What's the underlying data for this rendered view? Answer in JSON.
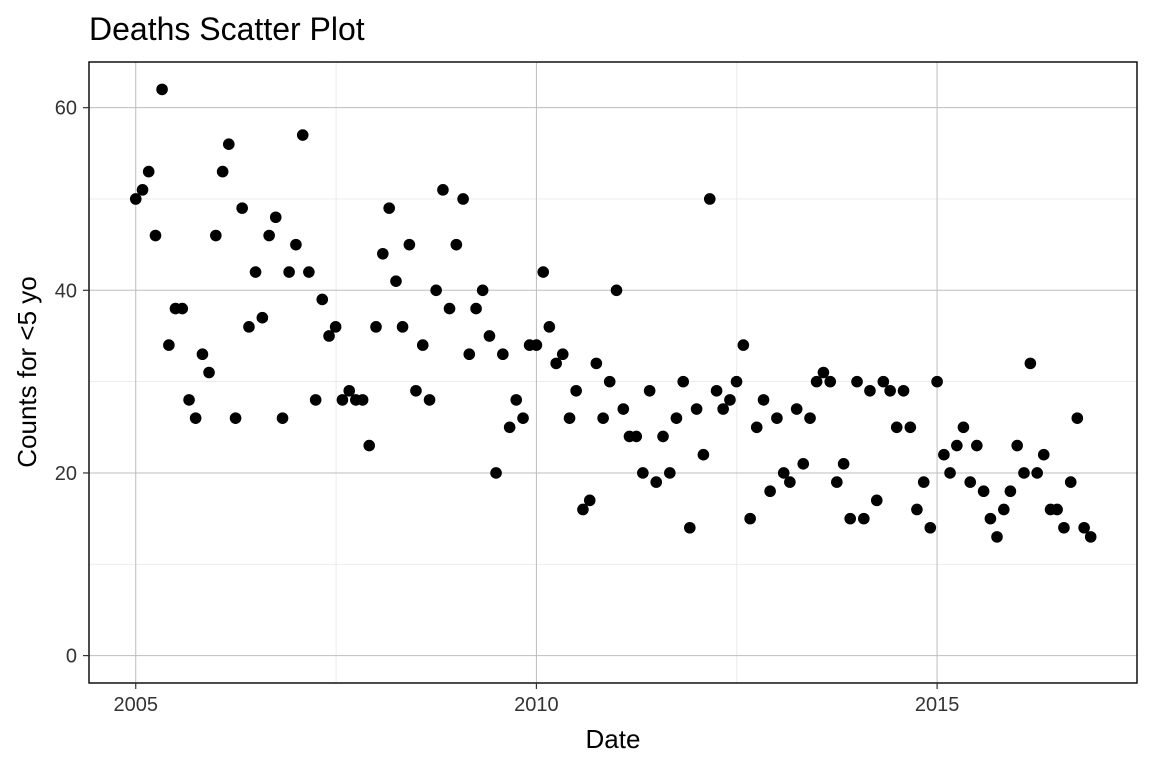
{
  "chart_data": {
    "type": "scatter",
    "title": "Deaths Scatter Plot",
    "xlabel": "Date",
    "ylabel": "Counts for <5 yo",
    "xlim": [
      "2004-06-02",
      "2017-06-30"
    ],
    "ylim": [
      -3,
      65
    ],
    "x_ticks": [
      {
        "date": "2005-01-01",
        "label": "2005"
      },
      {
        "date": "2010-01-01",
        "label": "2010"
      },
      {
        "date": "2015-01-01",
        "label": "2015"
      }
    ],
    "y_ticks": [
      0,
      20,
      40,
      60
    ],
    "grid": true,
    "legend": "none",
    "point_color": "#000000",
    "series": [
      {
        "x": [
          "2005-01-01",
          "2005-02-01",
          "2005-03-01",
          "2005-04-01",
          "2005-05-01",
          "2005-06-01",
          "2005-07-01",
          "2005-08-01",
          "2005-09-01",
          "2005-10-01",
          "2005-11-01",
          "2005-12-01",
          "2006-01-01",
          "2006-02-01",
          "2006-03-01",
          "2006-04-01",
          "2006-05-01",
          "2006-06-01",
          "2006-07-01",
          "2006-08-01",
          "2006-09-01",
          "2006-10-01",
          "2006-11-01",
          "2006-12-01",
          "2007-01-01",
          "2007-02-01",
          "2007-03-01",
          "2007-04-01",
          "2007-05-01",
          "2007-06-01",
          "2007-07-01",
          "2007-08-01",
          "2007-09-01",
          "2007-10-01",
          "2007-11-01",
          "2007-12-01",
          "2008-01-01",
          "2008-02-01",
          "2008-03-01",
          "2008-04-01",
          "2008-05-01",
          "2008-06-01",
          "2008-07-01",
          "2008-08-01",
          "2008-09-01",
          "2008-10-01",
          "2008-11-01",
          "2008-12-01",
          "2009-01-01",
          "2009-02-01",
          "2009-03-01",
          "2009-04-01",
          "2009-05-01",
          "2009-06-01",
          "2009-07-01",
          "2009-08-01",
          "2009-09-01",
          "2009-10-01",
          "2009-11-01",
          "2009-12-01",
          "2010-01-01",
          "2010-02-01",
          "2010-03-01",
          "2010-04-01",
          "2010-05-01",
          "2010-06-01",
          "2010-07-01",
          "2010-08-01",
          "2010-09-01",
          "2010-10-01",
          "2010-11-01",
          "2010-12-01",
          "2011-01-01",
          "2011-02-01",
          "2011-03-01",
          "2011-04-01",
          "2011-05-01",
          "2011-06-01",
          "2011-07-01",
          "2011-08-01",
          "2011-09-01",
          "2011-10-01",
          "2011-11-01",
          "2011-12-01",
          "2012-01-01",
          "2012-02-01",
          "2012-03-01",
          "2012-04-01",
          "2012-05-01",
          "2012-06-01",
          "2012-07-01",
          "2012-08-01",
          "2012-09-01",
          "2012-10-01",
          "2012-11-01",
          "2012-12-01",
          "2013-01-01",
          "2013-02-01",
          "2013-03-01",
          "2013-04-01",
          "2013-05-01",
          "2013-06-01",
          "2013-07-01",
          "2013-08-01",
          "2013-09-01",
          "2013-10-01",
          "2013-11-01",
          "2013-12-01",
          "2014-01-01",
          "2014-02-01",
          "2014-03-01",
          "2014-04-01",
          "2014-05-01",
          "2014-06-01",
          "2014-07-01",
          "2014-08-01",
          "2014-09-01",
          "2014-10-01",
          "2014-11-01",
          "2014-12-01",
          "2015-01-01",
          "2015-02-01",
          "2015-03-01",
          "2015-04-01",
          "2015-05-01",
          "2015-06-01",
          "2015-07-01",
          "2015-08-01",
          "2015-09-01",
          "2015-10-01",
          "2015-11-01",
          "2015-12-01",
          "2016-01-01",
          "2016-02-01",
          "2016-03-01",
          "2016-04-01",
          "2016-05-01",
          "2016-06-01",
          "2016-07-01",
          "2016-08-01",
          "2016-09-01",
          "2016-10-01",
          "2016-11-01",
          "2016-12-01"
        ],
        "y": [
          50,
          51,
          53,
          46,
          62,
          34,
          38,
          38,
          28,
          26,
          33,
          31,
          46,
          53,
          56,
          26,
          49,
          36,
          42,
          37,
          46,
          48,
          26,
          42,
          45,
          57,
          42,
          28,
          39,
          35,
          36,
          28,
          29,
          28,
          28,
          23,
          36,
          44,
          49,
          41,
          36,
          45,
          29,
          34,
          28,
          40,
          51,
          38,
          45,
          50,
          33,
          38,
          40,
          35,
          20,
          33,
          25,
          28,
          26,
          34,
          34,
          42,
          36,
          32,
          33,
          26,
          29,
          16,
          17,
          32,
          26,
          30,
          40,
          27,
          24,
          24,
          20,
          29,
          19,
          24,
          20,
          26,
          30,
          14,
          27,
          22,
          50,
          29,
          27,
          28,
          30,
          34,
          15,
          25,
          28,
          18,
          26,
          20,
          19,
          27,
          21,
          26,
          30,
          31,
          30,
          19,
          21,
          15,
          30,
          15,
          29,
          17,
          30,
          29,
          25,
          29,
          25,
          16,
          19,
          14,
          30,
          22,
          20,
          23,
          25,
          19,
          23,
          18,
          15,
          13,
          16,
          18,
          23,
          20,
          32,
          20,
          22,
          16,
          16,
          14,
          19,
          26,
          14,
          13
        ]
      }
    ]
  }
}
